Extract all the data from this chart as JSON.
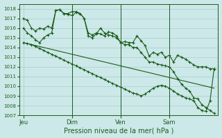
{
  "background_color": "#cce8e8",
  "grid_major_color": "#aacccc",
  "grid_minor_color": "#c0dddd",
  "line_color": "#1a5c1a",
  "title": "Pression niveau de la mer( hPa )",
  "ylim": [
    1007,
    1018.5
  ],
  "yticks": [
    1007,
    1008,
    1009,
    1010,
    1011,
    1012,
    1013,
    1014,
    1015,
    1016,
    1017,
    1018
  ],
  "xtick_labels": [
    "Jeu",
    "Dim",
    "Ven",
    "Sam"
  ],
  "xtick_positions": [
    0,
    12,
    24,
    36
  ],
  "total_points": 48,
  "series_high": [
    1017.0,
    1016.8,
    1016.0,
    1015.7,
    1016.0,
    1015.9,
    1016.2,
    1016.0,
    1017.8,
    1017.9,
    1017.5,
    1017.5,
    1017.7,
    1017.7,
    1017.5,
    1017.0,
    1015.5,
    1015.3,
    1015.5,
    1015.4,
    1015.2,
    1015.6,
    1015.5,
    1015.2,
    1014.5,
    1014.6,
    1014.5,
    1014.5,
    1015.2,
    1014.7,
    1014.2,
    1013.1,
    1013.5,
    1013.3,
    1013.5,
    1013.0,
    1013.2,
    1012.5,
    1013.2,
    1013.0,
    1012.8,
    1012.5,
    1012.2,
    1012.0,
    1012.0,
    1012.0,
    1011.8,
    1011.8
  ],
  "series_peak": [
    1016.0,
    1015.5,
    1015.2,
    1014.8,
    1014.5,
    1015.0,
    1015.3,
    1015.5,
    1017.8,
    1017.9,
    1017.5,
    1017.4,
    1017.3,
    1017.6,
    1017.5,
    1017.0,
    1015.2,
    1015.0,
    1015.4,
    1016.0,
    1015.5,
    1015.3,
    1015.2,
    1015.0,
    1014.5,
    1014.3,
    1014.3,
    1014.0,
    1014.0,
    1013.5,
    1013.0,
    1012.5,
    1012.5,
    1012.3,
    1012.2,
    1012.1,
    1012.0,
    1011.5,
    1010.8,
    1010.2,
    1009.8,
    1009.5,
    1008.8,
    1008.7,
    1008.1,
    1007.8,
    1007.5,
    1007.2
  ],
  "series_straight1": [
    1014.5,
    1014.4,
    1014.3,
    1014.2,
    1014.1,
    1014.0,
    1013.9,
    1013.8,
    1013.7,
    1013.6,
    1013.5,
    1013.4,
    1013.3,
    1013.2,
    1013.1,
    1013.0,
    1012.9,
    1012.8,
    1012.7,
    1012.6,
    1012.5,
    1012.4,
    1012.3,
    1012.2,
    1012.1,
    1012.0,
    1011.9,
    1011.8,
    1011.7,
    1011.6,
    1011.5,
    1011.4,
    1011.3,
    1011.2,
    1011.1,
    1011.0,
    1010.9,
    1010.8,
    1010.7,
    1010.6,
    1010.5,
    1010.4,
    1010.3,
    1010.2,
    1010.1,
    1010.0,
    1009.9,
    1009.8
  ],
  "series_drop": [
    1014.5,
    1014.4,
    1014.3,
    1014.1,
    1013.9,
    1013.7,
    1013.5,
    1013.3,
    1013.1,
    1012.9,
    1012.7,
    1012.5,
    1012.3,
    1012.1,
    1011.9,
    1011.7,
    1011.5,
    1011.3,
    1011.1,
    1010.9,
    1010.7,
    1010.5,
    1010.3,
    1010.1,
    1009.9,
    1009.7,
    1009.5,
    1009.3,
    1009.2,
    1009.0,
    1009.2,
    1009.5,
    1009.8,
    1010.0,
    1010.1,
    1010.0,
    1009.8,
    1009.5,
    1009.2,
    1009.0,
    1008.8,
    1008.7,
    1008.5,
    1007.8,
    1007.5,
    1007.4,
    1008.5,
    1011.8
  ]
}
